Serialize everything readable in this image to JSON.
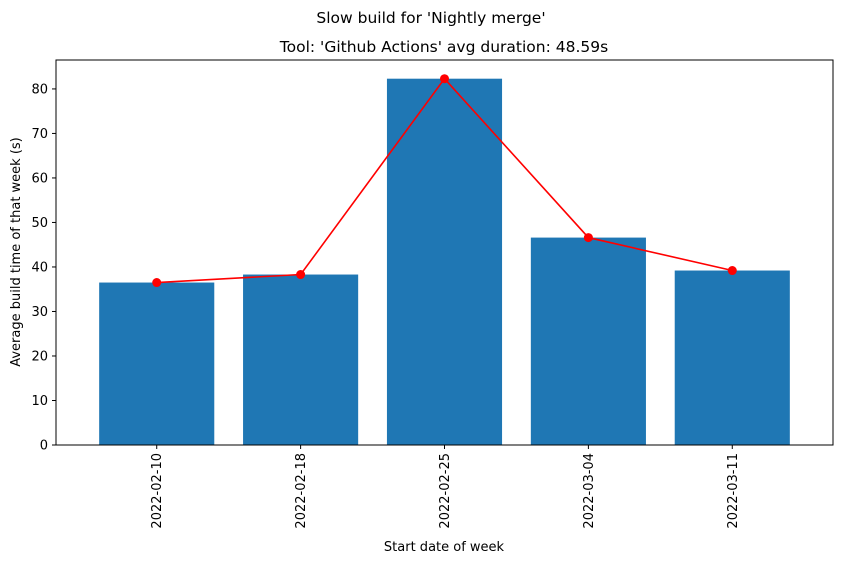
{
  "chart_data": {
    "type": "bar",
    "suptitle": "Slow build for 'Nightly merge'",
    "title": "Tool: 'Github Actions' avg duration: 48.59s",
    "xlabel": "Start date of week",
    "ylabel": "Average build time of that week (s)",
    "categories": [
      "2022-02-10",
      "2022-02-18",
      "2022-02-25",
      "2022-03-04",
      "2022-03-11"
    ],
    "values": [
      36.5,
      38.3,
      82.3,
      46.6,
      39.2
    ],
    "overlay_line": {
      "type": "line",
      "values": [
        36.5,
        38.3,
        82.3,
        46.6,
        39.2
      ],
      "marker": "circle"
    },
    "ylim": [
      0,
      86.5
    ],
    "yticks": [
      0,
      10,
      20,
      30,
      40,
      50,
      60,
      70,
      80
    ],
    "x_tick_rotation": "vertical",
    "grid": false,
    "legend": "none",
    "colors": {
      "bar": "#1f77b4",
      "line": "#ff0000",
      "axes": "#000000"
    }
  }
}
